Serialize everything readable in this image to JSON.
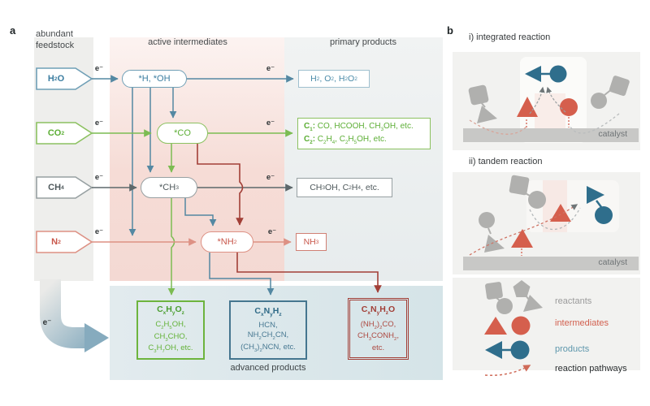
{
  "panel_a": {
    "label": "a",
    "headers": {
      "feedstock": "abundant feedstock",
      "intermediates": "active intermediates",
      "products": "primary products"
    },
    "electron": "e⁻",
    "rows": [
      {
        "name": "water",
        "feedstock": "H_2_O",
        "intermediate": "*H, *OH",
        "product": "H_2_, O_2_, H_2_O_2_"
      },
      {
        "name": "co2",
        "feedstock": "CO_2_",
        "intermediate": "*CO",
        "product_l1_label": "C_1_:",
        "product_l1": " CO, HCOOH, CH_3_OH, etc.",
        "product_l2_label": "C_2_:",
        "product_l2": " C_2_H_4_, C_2_H_5_OH, etc."
      },
      {
        "name": "methane",
        "feedstock": "CH_4_",
        "intermediate": "*CH_3_",
        "product": "CH_3_OH, C_2_H_4_, etc."
      },
      {
        "name": "nitrogen",
        "feedstock": "N_2_",
        "intermediate": "*NH_2_",
        "product": "NH_3_"
      }
    ],
    "advanced": {
      "caption": "advanced products",
      "boxes": [
        {
          "title": "C_x_H_y_O_z_",
          "lines": [
            "C_2_H_5_OH,",
            "CH_3_CHO,",
            "C_3_H_7_OH, etc."
          ]
        },
        {
          "title": "C_x_N_y_H_z_",
          "lines": [
            "HCN,",
            "NH_2_CH_2_CN,",
            "(CH_3_)_2_NCN, etc."
          ]
        },
        {
          "title": "C_x_N_y_H_z_O",
          "lines": [
            "(NH_2_)_2_CO,",
            "CH_3_CONH_2_,",
            "etc."
          ]
        }
      ]
    }
  },
  "panel_b": {
    "label": "b",
    "sections": [
      {
        "title": "i) integrated reaction"
      },
      {
        "title": "ii) tandem reaction"
      }
    ],
    "catalyst_label": "catalyst",
    "legend": [
      {
        "label": "reactants"
      },
      {
        "label": "intermediates"
      },
      {
        "label": "products"
      },
      {
        "label": "reaction pathways"
      }
    ]
  },
  "colors": {
    "blue": "#5488a2",
    "blue_text": "#3b7da0",
    "green": "#7cbc52",
    "green_text": "#5cae35",
    "gray_line": "#5d686b",
    "gray_text": "#4e585b",
    "light_red": "#dd9184",
    "light_red_text": "#c8564a",
    "dark_red": "#a23f37",
    "shape_red": "#d55f4d",
    "shape_blue": "#2f6e8c",
    "shape_gray": "#b0b0ae",
    "catalyst_bar": "#c8c8c6"
  }
}
